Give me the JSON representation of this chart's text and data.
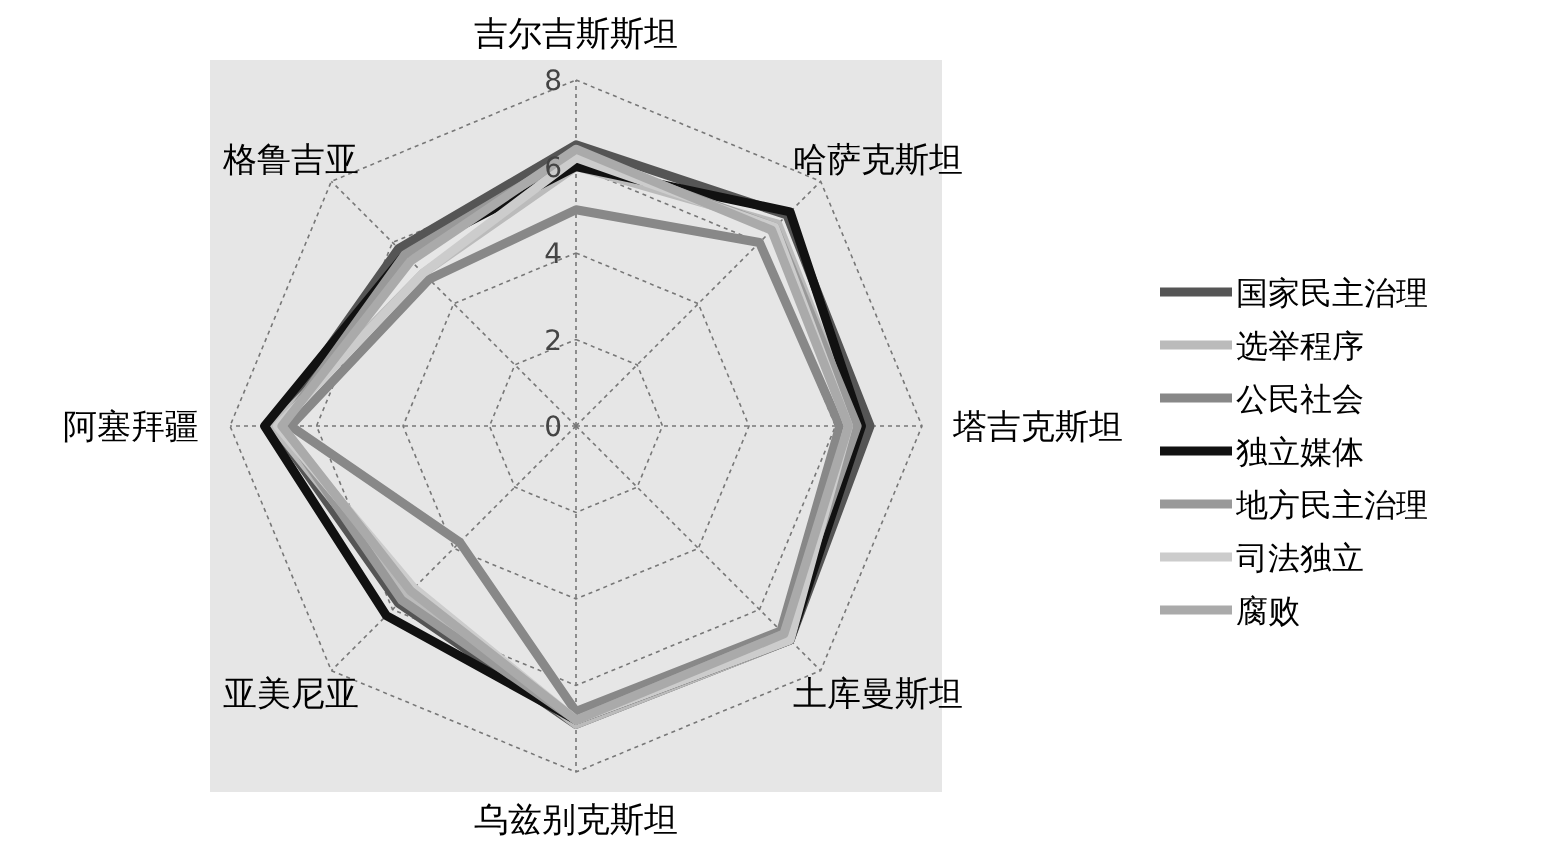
{
  "chart_data": {
    "type": "radar",
    "categories": [
      "吉尔吉斯斯坦",
      "哈萨克斯坦",
      "塔吉克斯坦",
      "土库曼斯坦",
      "乌兹别克斯坦",
      "亚美尼亚",
      "阿塞拜疆",
      "格鲁吉亚"
    ],
    "ylim": [
      0,
      8
    ],
    "yticks": [
      0,
      2,
      4,
      6,
      8
    ],
    "grid": true,
    "legend": "right",
    "series": [
      {
        "name": "国家民主治理",
        "color": "#555555",
        "values": [
          6.5,
          6.9,
          6.8,
          7.0,
          6.9,
          5.8,
          7.0,
          5.8
        ]
      },
      {
        "name": "选举程序",
        "color": "#bbbbbb",
        "values": [
          6.0,
          6.6,
          6.5,
          7.0,
          6.9,
          5.5,
          7.0,
          5.0
        ]
      },
      {
        "name": "公民社会",
        "color": "#888888",
        "values": [
          5.0,
          6.0,
          6.1,
          6.7,
          6.6,
          3.8,
          6.6,
          4.8
        ]
      },
      {
        "name": "独立媒体",
        "color": "#111111",
        "values": [
          6.0,
          7.0,
          6.6,
          7.0,
          6.8,
          6.2,
          7.2,
          5.6
        ]
      },
      {
        "name": "地方民主治理",
        "color": "#999999",
        "values": [
          6.3,
          6.5,
          6.5,
          6.8,
          6.8,
          5.7,
          6.8,
          5.6
        ]
      },
      {
        "name": "司法独立",
        "color": "#cccccc",
        "values": [
          6.2,
          6.5,
          6.3,
          7.0,
          6.8,
          5.3,
          6.9,
          5.0
        ]
      },
      {
        "name": "腐败",
        "color": "#aaaaaa",
        "values": [
          6.4,
          6.4,
          6.3,
          6.8,
          6.8,
          5.4,
          6.8,
          5.4
        ]
      }
    ]
  }
}
